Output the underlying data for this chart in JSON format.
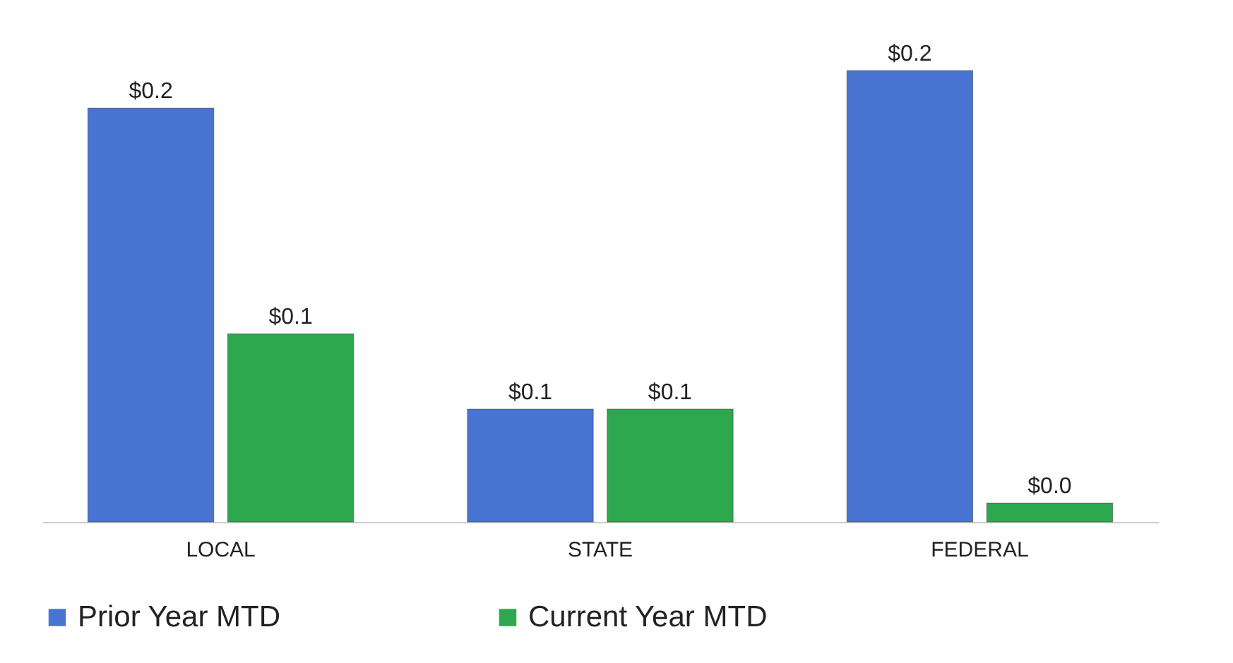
{
  "chart_data": {
    "type": "bar",
    "categories": [
      "LOCAL",
      "STATE",
      "FEDERAL"
    ],
    "legend": "bottom",
    "series": [
      {
        "name": "Prior Year MTD",
        "color": "#4a74d2",
        "values": [
          0.22,
          0.06,
          0.24
        ],
        "value_labels": [
          "$0.2",
          "$0.1",
          "$0.2"
        ]
      },
      {
        "name": "Current Year MTD",
        "color": "#2ea84f",
        "values": [
          0.1,
          0.06,
          0.01
        ],
        "value_labels": [
          "$0.1",
          "$0.1",
          "$0.0"
        ]
      }
    ]
  }
}
